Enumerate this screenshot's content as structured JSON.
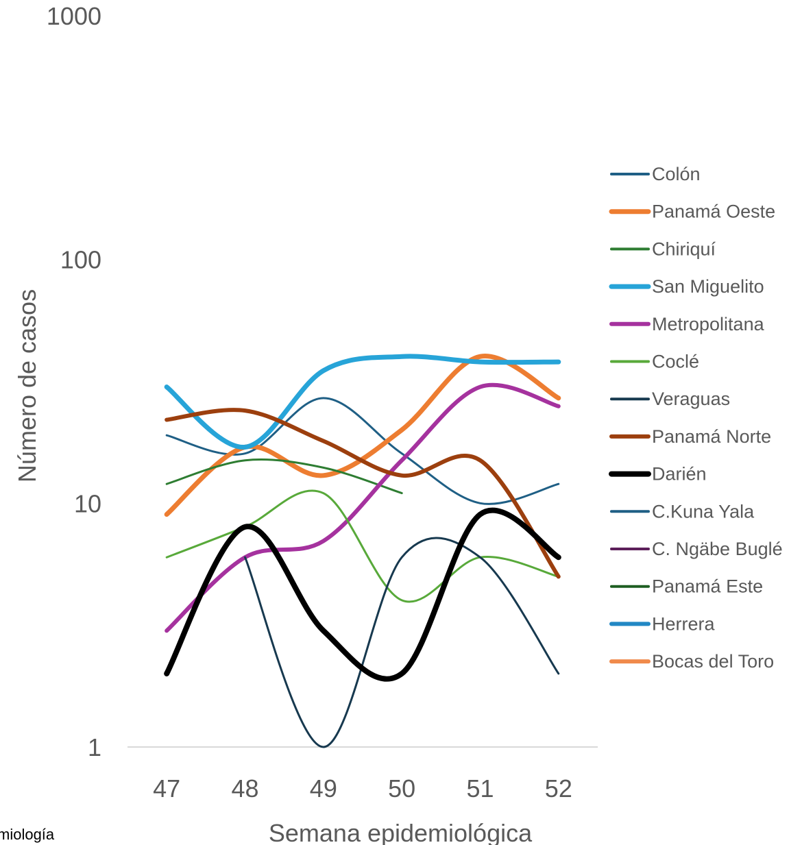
{
  "footnote": "miología",
  "chart_data": {
    "type": "line",
    "xlabel": "Semana epidemiológica",
    "ylabel": "Número de casos",
    "y_scale": "log",
    "ylim": [
      1,
      1000
    ],
    "y_ticks": [
      "1",
      "10",
      "100",
      "1000"
    ],
    "categories": [
      "47",
      "48",
      "49",
      "50",
      "51",
      "52"
    ],
    "legend_position": "right",
    "smoothed": true,
    "series": [
      {
        "name": "Colón",
        "color": "#1f5f85",
        "width": 3,
        "values": [
          19,
          16,
          27,
          16,
          10,
          12
        ]
      },
      {
        "name": "Panamá Oeste",
        "color": "#ed7d31",
        "width": 7,
        "values": [
          9,
          17,
          13,
          20,
          40,
          27
        ]
      },
      {
        "name": "Chiriquí",
        "color": "#2e7d32",
        "width": 3,
        "values": [
          12,
          15,
          14,
          11,
          null,
          null
        ]
      },
      {
        "name": "San Miguelito",
        "color": "#27a4d8",
        "width": 7,
        "values": [
          30,
          17,
          35,
          40,
          38,
          38
        ]
      },
      {
        "name": "Metropolitana",
        "color": "#a5329e",
        "width": 6,
        "values": [
          3,
          6,
          7,
          15,
          30,
          25
        ]
      },
      {
        "name": "Coclé",
        "color": "#58a93a",
        "width": 3,
        "values": [
          6,
          8,
          11,
          4,
          6,
          5
        ]
      },
      {
        "name": "Veraguas",
        "color": "#17394f",
        "width": 3,
        "values": [
          null,
          6,
          1,
          6,
          6,
          2
        ]
      },
      {
        "name": "Panamá Norte",
        "color": "#9c3f0e",
        "width": 6,
        "values": [
          22,
          24,
          18,
          13,
          15,
          5
        ]
      },
      {
        "name": "Darién",
        "color": "#000000",
        "width": 8,
        "values": [
          2,
          8,
          3,
          2,
          9,
          6
        ]
      },
      {
        "name": "C.Kuna Yala",
        "color": "#1f5f85",
        "width": 3,
        "values": [
          null,
          null,
          null,
          null,
          null,
          null
        ]
      },
      {
        "name": "C. Ngäbe Buglé",
        "color": "#5c1f5a",
        "width": 3,
        "values": [
          null,
          null,
          null,
          null,
          null,
          null
        ]
      },
      {
        "name": "Panamá Este",
        "color": "#1e5e22",
        "width": 3,
        "values": [
          null,
          null,
          null,
          null,
          null,
          null
        ]
      },
      {
        "name": "Herrera",
        "color": "#2288c4",
        "width": 6,
        "values": [
          null,
          null,
          null,
          null,
          null,
          null
        ]
      },
      {
        "name": "Bocas del Toro",
        "color": "#f08a4b",
        "width": 6,
        "values": [
          null,
          null,
          null,
          null,
          null,
          null
        ]
      }
    ]
  }
}
